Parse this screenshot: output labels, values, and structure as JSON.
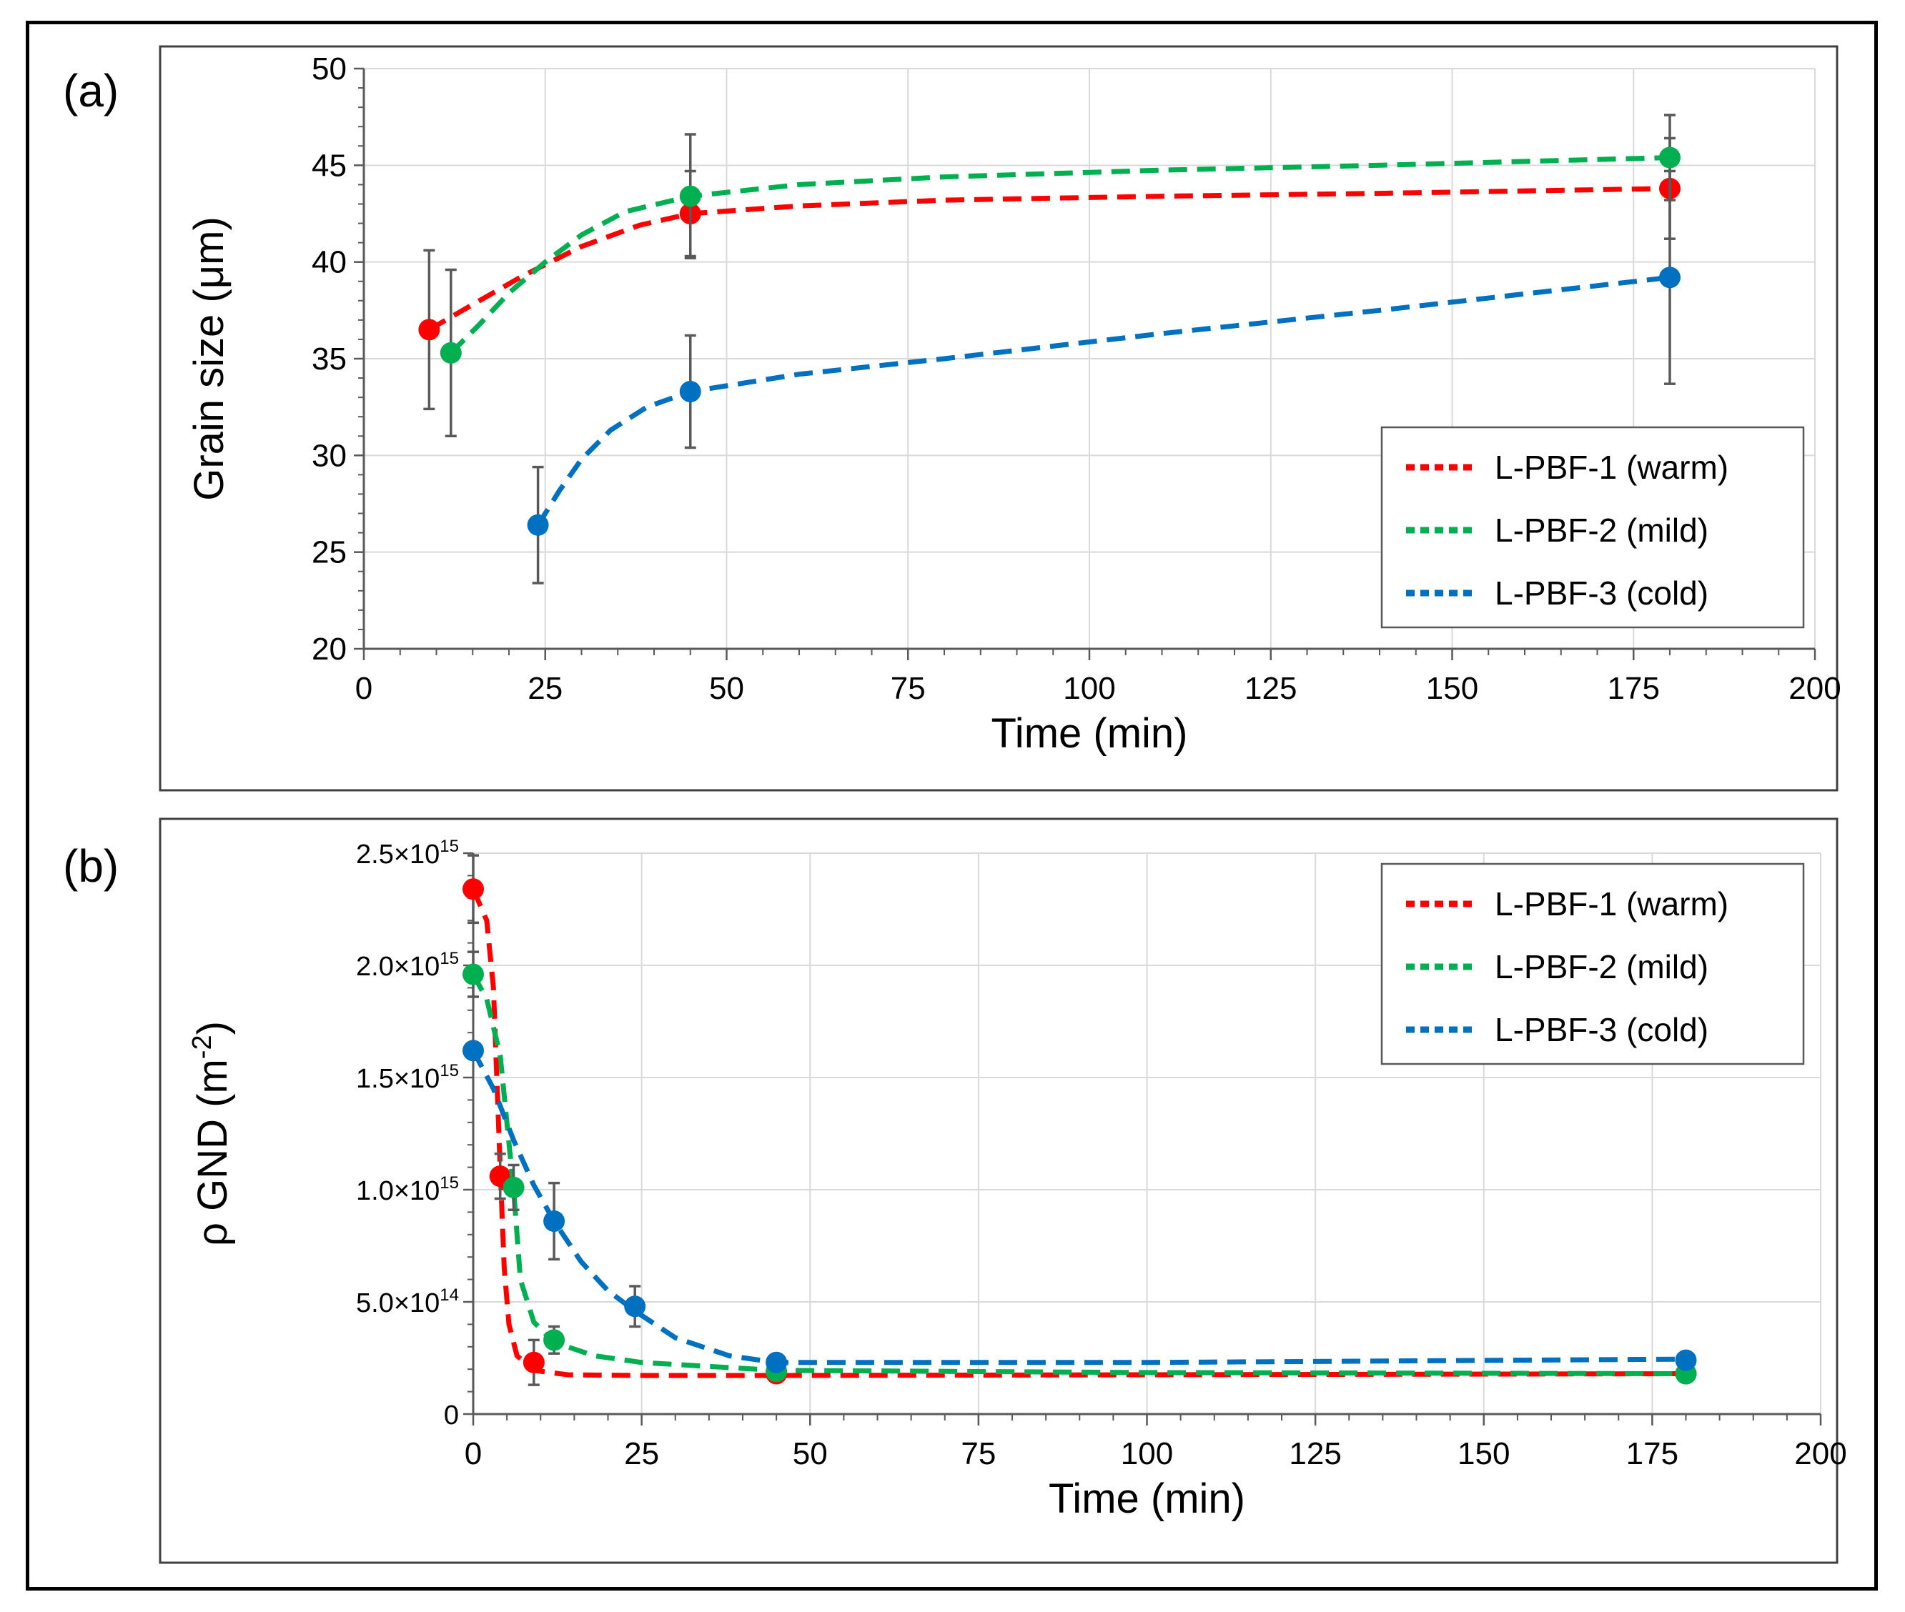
{
  "chart_data": [
    {
      "type": "scatter",
      "panel_label": "(a)",
      "title": "",
      "xlabel": "Time (min)",
      "ylabel": "Grain size (μm)",
      "xlim": [
        0,
        200
      ],
      "ylim": [
        20,
        50
      ],
      "x_ticks": [
        "0",
        "25",
        "50",
        "75",
        "100",
        "125",
        "150",
        "175",
        "200"
      ],
      "y_ticks": [
        "20",
        "25",
        "30",
        "35",
        "40",
        "45",
        "50"
      ],
      "grid": true,
      "legend_position": "bottom-right",
      "series": [
        {
          "name": "L-PBF-1 (warm)",
          "color": "#ff0000",
          "points": [
            {
              "x": 9,
              "y": 36.5,
              "err": 4.1
            },
            {
              "x": 45,
              "y": 42.5,
              "err": 2.2
            },
            {
              "x": 180,
              "y": 43.8,
              "err": 2.6
            }
          ],
          "fit": [
            [
              9,
              36.5
            ],
            [
              15,
              37.8
            ],
            [
              22,
              39.3
            ],
            [
              30,
              40.8
            ],
            [
              38,
              41.9
            ],
            [
              45,
              42.5
            ],
            [
              60,
              42.9
            ],
            [
              80,
              43.2
            ],
            [
              110,
              43.4
            ],
            [
              140,
              43.55
            ],
            [
              180,
              43.8
            ]
          ]
        },
        {
          "name": "L-PBF-2 (mild)",
          "color": "#00b050",
          "points": [
            {
              "x": 12,
              "y": 35.3,
              "err": 4.3
            },
            {
              "x": 45,
              "y": 43.4,
              "err": 3.2
            },
            {
              "x": 180,
              "y": 45.4,
              "err": 2.2
            }
          ],
          "fit": [
            [
              12,
              35.3
            ],
            [
              16,
              36.8
            ],
            [
              20,
              38.4
            ],
            [
              25,
              40.0
            ],
            [
              30,
              41.4
            ],
            [
              36,
              42.6
            ],
            [
              45,
              43.4
            ],
            [
              60,
              44.0
            ],
            [
              80,
              44.4
            ],
            [
              110,
              44.75
            ],
            [
              140,
              45.0
            ],
            [
              180,
              45.4
            ]
          ]
        },
        {
          "name": "L-PBF-3 (cold)",
          "color": "#0070c0",
          "points": [
            {
              "x": 24,
              "y": 26.4,
              "err": 3.0
            },
            {
              "x": 45,
              "y": 33.3,
              "err": 2.9
            },
            {
              "x": 180,
              "y": 39.2,
              "err": 5.5
            }
          ],
          "fit": [
            [
              24,
              26.4
            ],
            [
              27,
              28.2
            ],
            [
              30,
              29.8
            ],
            [
              34,
              31.3
            ],
            [
              39,
              32.5
            ],
            [
              45,
              33.3
            ],
            [
              60,
              34.2
            ],
            [
              80,
              35.0
            ],
            [
              110,
              36.3
            ],
            [
              140,
              37.5
            ],
            [
              180,
              39.2
            ]
          ]
        }
      ]
    },
    {
      "type": "scatter",
      "panel_label": "(b)",
      "title": "",
      "xlabel": "Time (min)",
      "ylabel_main": "ρ GND (m",
      "ylabel_sup": "-2",
      "ylabel_close": ")",
      "xlim": [
        0,
        200
      ],
      "ylim": [
        0,
        2500000000000000.0
      ],
      "x_ticks": [
        "0",
        "25",
        "50",
        "75",
        "100",
        "125",
        "150",
        "175",
        "200"
      ],
      "y_ticks": [
        {
          "value": 0,
          "mantissa": "0",
          "exp": ""
        },
        {
          "value": 500000000000000.0,
          "mantissa": "5.0×10",
          "exp": "14"
        },
        {
          "value": 1000000000000000.0,
          "mantissa": "1.0×10",
          "exp": "15"
        },
        {
          "value": 1500000000000000.0,
          "mantissa": "1.5×10",
          "exp": "15"
        },
        {
          "value": 2000000000000000.0,
          "mantissa": "2.0×10",
          "exp": "15"
        },
        {
          "value": 2500000000000000.0,
          "mantissa": "2.5×10",
          "exp": "15"
        }
      ],
      "grid": true,
      "legend_position": "top-right",
      "series": [
        {
          "name": "L-PBF-1 (warm)",
          "color": "#ff0000",
          "points": [
            {
              "x": 0,
              "y": 2340000000000000.0,
              "err": 150000000000000.0
            },
            {
              "x": 4,
              "y": 1060000000000000.0,
              "err": 100000000000000.0
            },
            {
              "x": 9,
              "y": 230000000000000.0,
              "err": 100000000000000.0
            },
            {
              "x": 45,
              "y": 180000000000000.0,
              "err": 20000000000000.0
            },
            {
              "x": 180,
              "y": 180000000000000.0,
              "err": 20000000000000.0
            }
          ],
          "fit": [
            [
              0,
              2340000000000000.0
            ],
            [
              2,
              2200000000000000.0
            ],
            [
              3,
              1900000000000000.0
            ],
            [
              4,
              1100000000000000.0
            ],
            [
              4.6,
              650000000000000.0
            ],
            [
              5.3,
              400000000000000.0
            ],
            [
              6.5,
              260000000000000.0
            ],
            [
              9,
              195000000000000.0
            ],
            [
              14,
              175000000000000.0
            ],
            [
              25,
              172000000000000.0
            ],
            [
              45,
              172000000000000.0
            ],
            [
              100,
              175000000000000.0
            ],
            [
              180,
              180000000000000.0
            ]
          ]
        },
        {
          "name": "L-PBF-2 (mild)",
          "color": "#00b050",
          "points": [
            {
              "x": 0,
              "y": 1960000000000000.0,
              "err": 100000000000000.0
            },
            {
              "x": 6,
              "y": 1010000000000000.0,
              "err": 100000000000000.0
            },
            {
              "x": 12,
              "y": 330000000000000.0,
              "err": 60000000000000.0
            },
            {
              "x": 45,
              "y": 190000000000000.0,
              "err": 20000000000000.0
            },
            {
              "x": 180,
              "y": 180000000000000.0,
              "err": 20000000000000.0
            }
          ],
          "fit": [
            [
              0,
              1960000000000000.0
            ],
            [
              2,
              1850000000000000.0
            ],
            [
              4,
              1600000000000000.0
            ],
            [
              5,
              1300000000000000.0
            ],
            [
              6,
              1000000000000000.0
            ],
            [
              7,
              600000000000000.0
            ],
            [
              9,
              410000000000000.0
            ],
            [
              12,
              320000000000000.0
            ],
            [
              18,
              260000000000000.0
            ],
            [
              25,
              230000000000000.0
            ],
            [
              45,
              195000000000000.0
            ],
            [
              100,
              185000000000000.0
            ],
            [
              180,
              180000000000000.0
            ]
          ]
        },
        {
          "name": "L-PBF-3 (cold)",
          "color": "#0070c0",
          "points": [
            {
              "x": 0,
              "y": 1620000000000000.0,
              "err": 0
            },
            {
              "x": 12,
              "y": 860000000000000.0,
              "err": 170000000000000.0
            },
            {
              "x": 24,
              "y": 480000000000000.0,
              "err": 90000000000000.0
            },
            {
              "x": 45,
              "y": 230000000000000.0,
              "err": 20000000000000.0
            },
            {
              "x": 180,
              "y": 240000000000000.0,
              "err": 30000000000000.0
            }
          ],
          "fit": [
            [
              0,
              1620000000000000.0
            ],
            [
              3,
              1450000000000000.0
            ],
            [
              6,
              1220000000000000.0
            ],
            [
              9,
              1020000000000000.0
            ],
            [
              12,
              860000000000000.0
            ],
            [
              16,
              680000000000000.0
            ],
            [
              20,
              550000000000000.0
            ],
            [
              24,
              460000000000000.0
            ],
            [
              30,
              340000000000000.0
            ],
            [
              38,
              260000000000000.0
            ],
            [
              45,
              230000000000000.0
            ],
            [
              100,
              230000000000000.0
            ],
            [
              180,
              245000000000000.0
            ]
          ]
        }
      ]
    }
  ]
}
